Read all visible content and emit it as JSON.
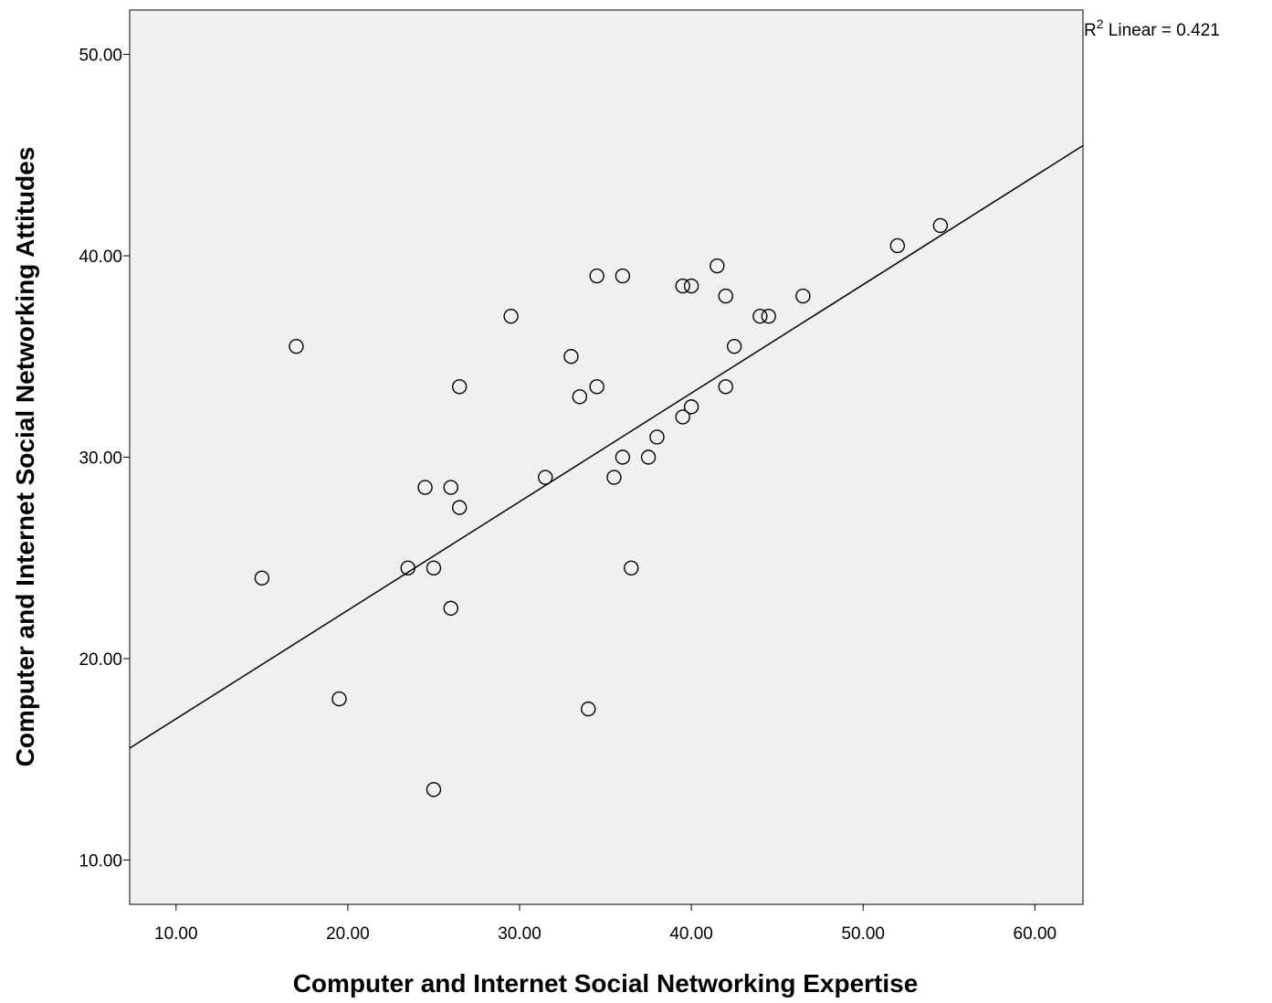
{
  "chart_data": {
    "type": "scatter",
    "title": "",
    "xlabel": "Computer and Internet Social Networking Expertise",
    "ylabel": "Computer and Internet Social Networking Attitudes",
    "xlim": [
      7.3,
      62.8
    ],
    "ylim": [
      7.8,
      52.2
    ],
    "x_ticks": [
      10,
      20,
      30,
      40,
      50,
      60
    ],
    "y_ticks": [
      10,
      20,
      30,
      40,
      50
    ],
    "x_tick_labels": [
      "10.00",
      "20.00",
      "30.00",
      "40.00",
      "50.00",
      "60.00"
    ],
    "y_tick_labels": [
      "10.00",
      "20.00",
      "30.00",
      "40.00",
      "50.00"
    ],
    "plot_background": "#f0f0f0",
    "marker": "open-circle",
    "grid": false,
    "points": [
      {
        "x": 15.0,
        "y": 24.0
      },
      {
        "x": 17.0,
        "y": 35.5
      },
      {
        "x": 19.5,
        "y": 18.0
      },
      {
        "x": 23.5,
        "y": 24.5
      },
      {
        "x": 24.5,
        "y": 28.5
      },
      {
        "x": 25.0,
        "y": 24.5
      },
      {
        "x": 25.0,
        "y": 13.5
      },
      {
        "x": 26.0,
        "y": 28.5
      },
      {
        "x": 26.0,
        "y": 22.5
      },
      {
        "x": 26.5,
        "y": 33.5
      },
      {
        "x": 26.5,
        "y": 27.5
      },
      {
        "x": 29.5,
        "y": 37.0
      },
      {
        "x": 31.5,
        "y": 29.0
      },
      {
        "x": 33.0,
        "y": 35.0
      },
      {
        "x": 33.5,
        "y": 33.0
      },
      {
        "x": 34.0,
        "y": 17.5
      },
      {
        "x": 34.5,
        "y": 39.0
      },
      {
        "x": 34.5,
        "y": 33.5
      },
      {
        "x": 35.5,
        "y": 29.0
      },
      {
        "x": 36.0,
        "y": 39.0
      },
      {
        "x": 36.0,
        "y": 30.0
      },
      {
        "x": 36.5,
        "y": 24.5
      },
      {
        "x": 37.5,
        "y": 30.0
      },
      {
        "x": 38.0,
        "y": 31.0
      },
      {
        "x": 39.5,
        "y": 38.5
      },
      {
        "x": 39.5,
        "y": 32.0
      },
      {
        "x": 40.0,
        "y": 38.5
      },
      {
        "x": 40.0,
        "y": 32.5
      },
      {
        "x": 41.5,
        "y": 39.5
      },
      {
        "x": 42.0,
        "y": 38.0
      },
      {
        "x": 42.0,
        "y": 33.5
      },
      {
        "x": 42.5,
        "y": 35.5
      },
      {
        "x": 44.0,
        "y": 37.0
      },
      {
        "x": 44.5,
        "y": 37.0
      },
      {
        "x": 46.5,
        "y": 38.0
      },
      {
        "x": 52.0,
        "y": 40.5
      },
      {
        "x": 54.5,
        "y": 41.5
      }
    ],
    "fit_line": {
      "intercept": 11.62,
      "slope": 0.539
    },
    "annotation": {
      "r2_prefix": "R",
      "r2_sup": "2",
      "r2_text": " Linear = 0.421"
    }
  }
}
